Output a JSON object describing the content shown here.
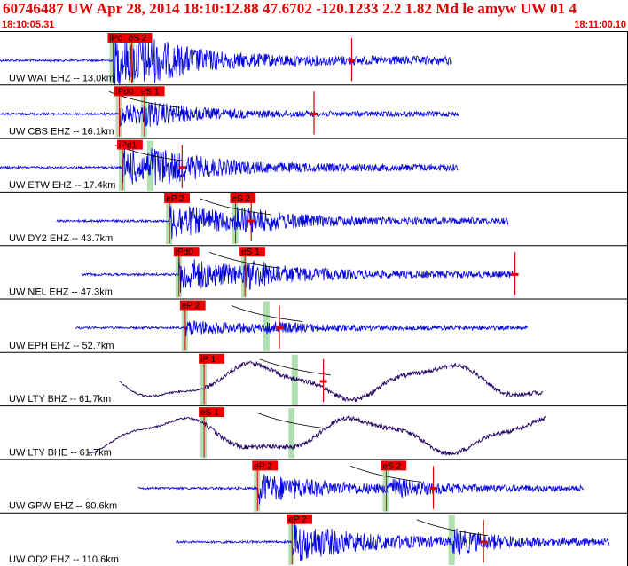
{
  "header": {
    "title": "60746487 UW Apr 28, 2014 18:10:12.88    47.6702 -120.1233  2.2 1.82 Md le amyw UW 01    4",
    "start_time": "18:10:05.31",
    "end_time": "18:11:00.10"
  },
  "colors": {
    "trace": "#0000dd",
    "longperiod_trace": "#200060",
    "pick_box": "#ee0000",
    "coda_marker": "#dd0000",
    "pick_window": "#b0e0b0",
    "separator": "#000000",
    "header_text": "#e00000"
  },
  "traces": [
    {
      "label": "UW WAT EHZ -- 13.0km",
      "picks": [
        "iPc",
        "eS 2"
      ],
      "start": 0.0,
      "end": 0.72,
      "p": 0.18,
      "s": 0.21,
      "coda": 0.56,
      "amp": 1.0,
      "type": "sp"
    },
    {
      "label": "UW CBS EHZ -- 16.1km",
      "picks": [
        "iPd0",
        "eS 1"
      ],
      "start": 0.0,
      "end": 0.73,
      "p": 0.19,
      "s": 0.23,
      "coda": 0.5,
      "amp": 0.45,
      "type": "sp"
    },
    {
      "label": "UW ETW EHZ -- 17.4km",
      "picks": [
        "iPd1"
      ],
      "start": 0.0,
      "end": 0.73,
      "p": 0.195,
      "s": 0.24,
      "coda": 0.29,
      "amp": 0.75,
      "type": "sp"
    },
    {
      "label": "UW DY2 EHZ -- 43.7km",
      "picks": [
        "eP 2",
        "eS 2"
      ],
      "start": 0.09,
      "end": 0.81,
      "p": 0.27,
      "s": 0.375,
      "coda": 0.4,
      "amp": 0.7,
      "type": "sp"
    },
    {
      "label": "UW NEL EHZ -- 47.3km",
      "picks": [
        "iPd0",
        "eS 1"
      ],
      "start": 0.13,
      "end": 0.82,
      "p": 0.285,
      "s": 0.39,
      "coda": 0.82,
      "amp": 0.7,
      "type": "sp"
    },
    {
      "label": "UW EPH EHZ -- 52.7km",
      "picks": [
        "eP 2"
      ],
      "start": 0.12,
      "end": 0.84,
      "p": 0.295,
      "s": 0.425,
      "coda": 0.445,
      "amp": 0.3,
      "type": "sp"
    },
    {
      "label": "UW LTY BHZ -- 61.7km",
      "picks": [
        "iP 1"
      ],
      "start": 0.19,
      "end": 0.865,
      "p": 0.325,
      "s": 0.47,
      "coda": 0.515,
      "amp": 0.9,
      "type": "lp"
    },
    {
      "label": "UW LTY BHE -- 61.7km",
      "picks": [
        "eS 1"
      ],
      "start": 0.14,
      "end": 0.87,
      "p": 0.325,
      "s": 0.465,
      "coda": 0.0,
      "amp": 0.9,
      "type": "lp"
    },
    {
      "label": "UW GPW EHZ -- 90.6km",
      "picks": [
        "eP 2",
        "eS 2"
      ],
      "start": 0.22,
      "end": 0.93,
      "p": 0.41,
      "s": 0.615,
      "coda": 0.69,
      "amp": 0.6,
      "type": "sp"
    },
    {
      "label": "UW OD2 EHZ -- 110.6km",
      "picks": [
        "eP 2"
      ],
      "start": 0.28,
      "end": 0.97,
      "p": 0.465,
      "s": 0.72,
      "coda": 0.77,
      "amp": 0.8,
      "type": "sp"
    }
  ]
}
